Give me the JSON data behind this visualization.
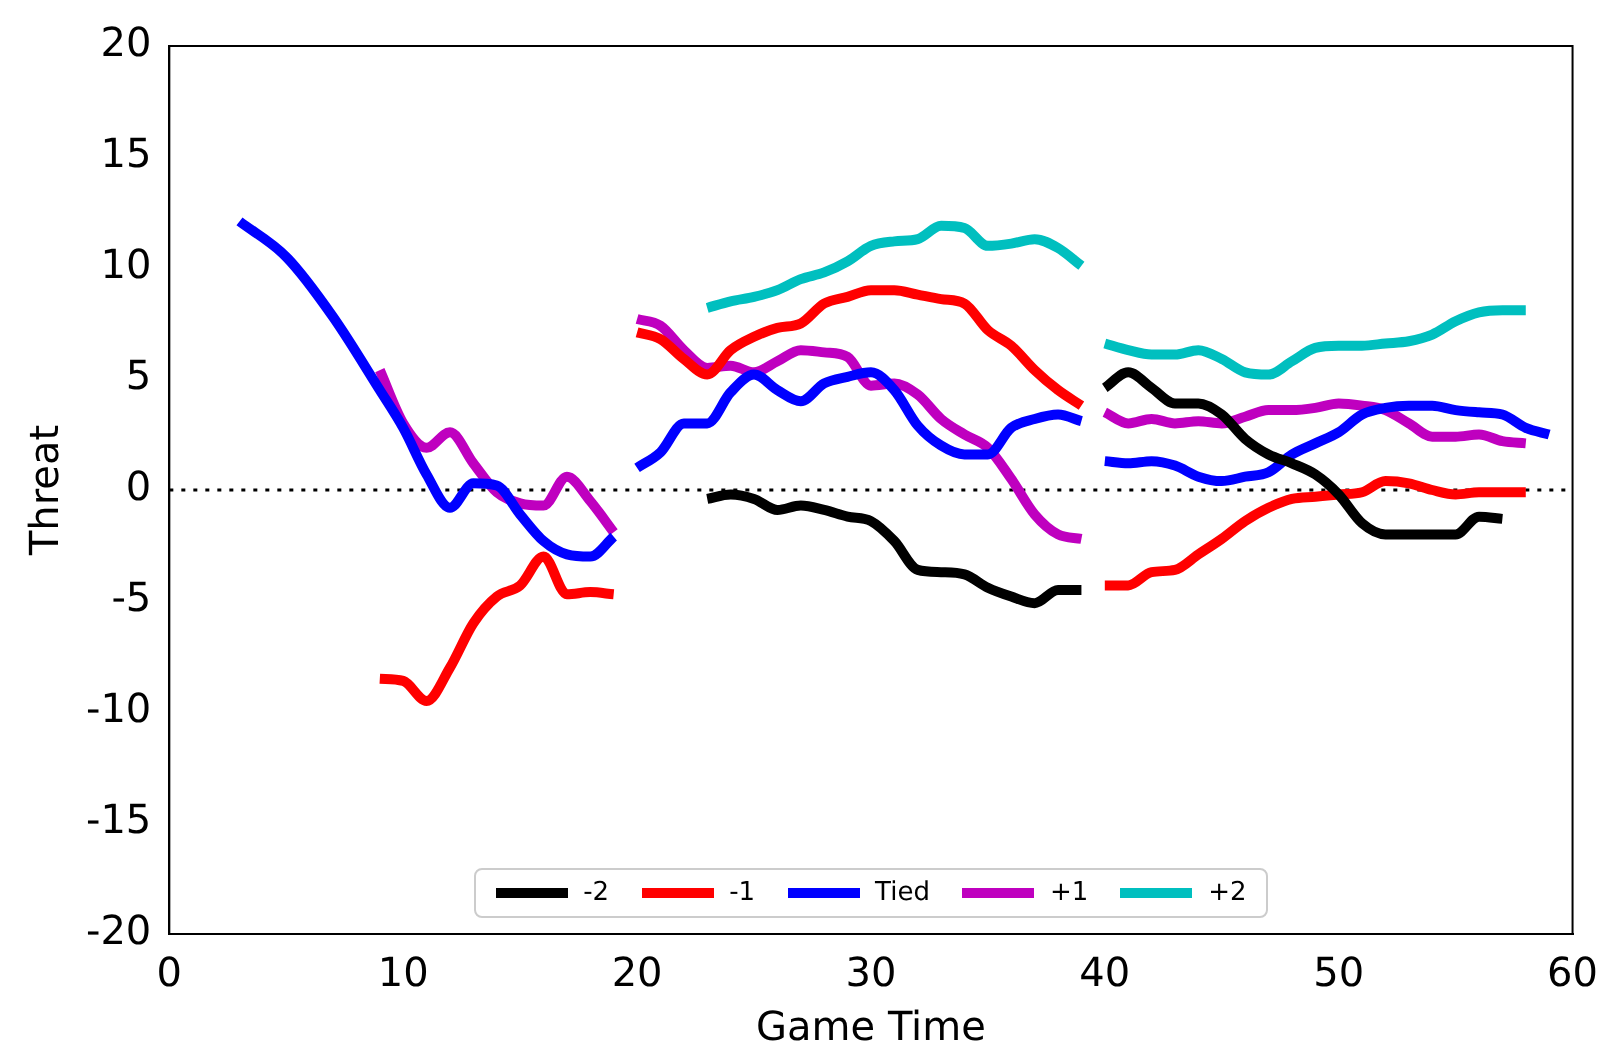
{
  "chart_data": {
    "type": "line",
    "xlabel": "Game Time",
    "ylabel": "Threat",
    "xlim": [
      0,
      60
    ],
    "xticks": [
      0,
      10,
      20,
      30,
      40,
      50,
      60
    ],
    "ylim": [
      -20,
      20
    ],
    "yticks": [
      -20,
      -15,
      -10,
      -5,
      0,
      5,
      10,
      15,
      20
    ],
    "grid": false,
    "legend": "bottom",
    "marker": "none",
    "line_style": "solid",
    "ref_lines": [
      {
        "axis": "y",
        "value": 0,
        "color": "#000000",
        "line_style": "dotted"
      }
    ],
    "series": [
      {
        "name": "-2",
        "color": "#000000",
        "x": [
          23,
          24,
          25,
          26,
          27,
          28,
          29,
          30,
          31,
          32,
          33,
          34,
          35,
          36,
          37,
          38,
          39,
          39.5,
          40,
          41,
          42,
          43,
          44,
          45,
          46,
          47,
          48,
          49,
          50,
          51,
          52,
          53,
          54,
          55,
          56,
          57
        ],
        "values": [
          -0.4,
          -0.2,
          -0.4,
          -0.9,
          -0.7,
          -0.9,
          -1.2,
          -1.4,
          -2.3,
          -3.6,
          -3.7,
          -3.8,
          -4.4,
          -4.8,
          -5.1,
          -4.5,
          -4.5,
          null,
          4.6,
          5.3,
          4.6,
          3.9,
          3.9,
          3.4,
          2.3,
          1.6,
          1.2,
          0.7,
          -0.2,
          -1.5,
          -2.0,
          -2.0,
          -2.0,
          -2.0,
          -1.2,
          -1.3
        ]
      },
      {
        "name": "-1",
        "color": "#ff0000",
        "x": [
          9,
          10,
          11,
          12,
          13,
          14,
          15,
          16,
          17,
          18,
          19,
          19.5,
          20,
          21,
          22,
          23,
          24,
          25,
          26,
          27,
          28,
          29,
          30,
          31,
          32,
          33,
          34,
          35,
          36,
          37,
          38,
          39,
          39.5,
          40,
          41,
          42,
          43,
          44,
          45,
          46,
          47,
          48,
          49,
          50,
          51,
          52,
          53,
          54,
          55,
          56,
          57,
          58
        ],
        "values": [
          -8.5,
          -8.6,
          -9.5,
          -8,
          -6,
          -4.8,
          -4.3,
          -3.0,
          -4.7,
          -4.6,
          -4.7,
          null,
          7.1,
          6.8,
          5.9,
          5.2,
          6.3,
          6.9,
          7.3,
          7.5,
          8.4,
          8.7,
          9.0,
          9.0,
          8.8,
          8.6,
          8.4,
          7.2,
          6.5,
          5.4,
          4.5,
          3.8,
          null,
          -4.3,
          -4.3,
          -3.7,
          -3.6,
          -2.9,
          -2.2,
          -1.4,
          -0.8,
          -0.4,
          -0.3,
          -0.2,
          -0.1,
          0.4,
          0.3,
          0.0,
          -0.2,
          -0.1,
          -0.1,
          -0.1
        ]
      },
      {
        "name": "Tied",
        "color": "#0000ff",
        "x": [
          3,
          5,
          7,
          9,
          10,
          11,
          12,
          13,
          14,
          15,
          16,
          17,
          18,
          19,
          19.5,
          20,
          21,
          22,
          23,
          24,
          25,
          26,
          27,
          28,
          29,
          30,
          31,
          32,
          33,
          34,
          35,
          36,
          37,
          38,
          39,
          39.5,
          40,
          41,
          42,
          43,
          44,
          45,
          46,
          47,
          48,
          49,
          50,
          51,
          52,
          53,
          54,
          55,
          56,
          57,
          58,
          59
        ],
        "values": [
          12.1,
          10.5,
          7.8,
          4.5,
          2.8,
          0.7,
          -0.8,
          0.3,
          0.2,
          -1.1,
          -2.3,
          -2.9,
          -3.0,
          -2.1,
          null,
          1.0,
          1.7,
          3.0,
          3.0,
          4.4,
          5.2,
          4.5,
          4.0,
          4.8,
          5.1,
          5.3,
          4.5,
          2.9,
          2.0,
          1.6,
          1.6,
          2.8,
          3.2,
          3.4,
          3.1,
          null,
          1.3,
          1.2,
          1.3,
          1.1,
          0.6,
          0.4,
          0.6,
          0.8,
          1.6,
          2.1,
          2.6,
          3.4,
          3.7,
          3.8,
          3.8,
          3.6,
          3.5,
          3.4,
          2.8,
          2.5
        ]
      },
      {
        "name": "+1",
        "color": "#bf00bf",
        "x": [
          9,
          10,
          11,
          12,
          13,
          14,
          15,
          16,
          17,
          18,
          19,
          19.5,
          20,
          21,
          22,
          23,
          24,
          25,
          26,
          27,
          28,
          29,
          30,
          31,
          32,
          33,
          34,
          35,
          36,
          37,
          38,
          39,
          39.5,
          40,
          41,
          42,
          43,
          44,
          45,
          46,
          47,
          48,
          49,
          50,
          51,
          52,
          53,
          54,
          55,
          56,
          57,
          58
        ],
        "values": [
          5.4,
          3.0,
          1.9,
          2.6,
          1.2,
          -0.1,
          -0.6,
          -0.7,
          0.6,
          -0.5,
          -1.9,
          null,
          7.7,
          7.4,
          6.3,
          5.5,
          5.6,
          5.3,
          5.8,
          6.3,
          6.2,
          6.0,
          4.7,
          4.8,
          4.3,
          3.2,
          2.5,
          1.9,
          0.5,
          -1.1,
          -2.0,
          -2.2,
          null,
          3.5,
          3.0,
          3.2,
          3.0,
          3.1,
          3.0,
          3.3,
          3.6,
          3.6,
          3.7,
          3.9,
          3.8,
          3.6,
          3.0,
          2.4,
          2.4,
          2.5,
          2.2,
          2.1
        ]
      },
      {
        "name": "+2",
        "color": "#00bfbf",
        "x": [
          23,
          24,
          25,
          26,
          27,
          28,
          29,
          30,
          31,
          32,
          33,
          34,
          35,
          36,
          37,
          38,
          39,
          39.5,
          40,
          41,
          42,
          43,
          44,
          45,
          46,
          47,
          48,
          49,
          50,
          51,
          52,
          53,
          54,
          55,
          56,
          57,
          58
        ],
        "values": [
          8.2,
          8.5,
          8.7,
          9.0,
          9.5,
          9.8,
          10.3,
          11.0,
          11.2,
          11.3,
          11.9,
          11.8,
          11.0,
          11.1,
          11.3,
          10.9,
          10.1,
          null,
          6.6,
          6.3,
          6.1,
          6.1,
          6.3,
          5.9,
          5.3,
          5.2,
          5.8,
          6.4,
          6.5,
          6.5,
          6.6,
          6.7,
          7.0,
          7.6,
          8.0,
          8.1,
          8.1
        ]
      }
    ]
  }
}
